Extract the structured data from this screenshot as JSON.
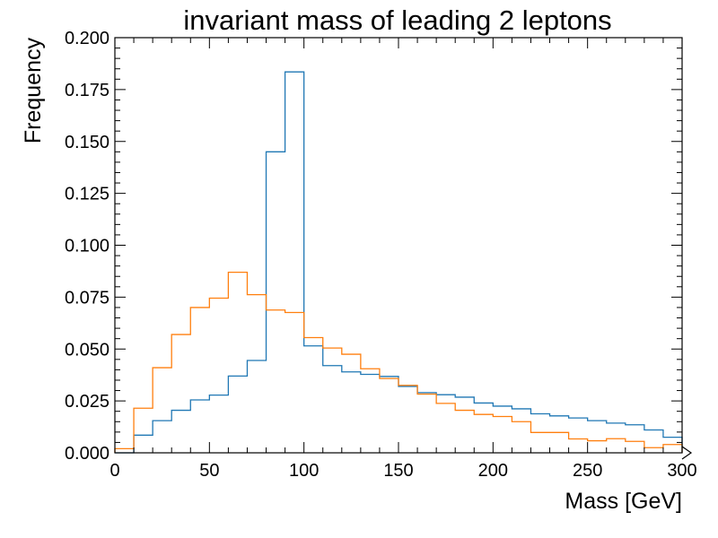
{
  "chart_data": {
    "type": "histogram",
    "title": "invariant mass of leading 2 leptons",
    "xlabel": "Mass [GeV]",
    "ylabel": "Frequency",
    "xlim": [
      0,
      300
    ],
    "ylim": [
      0,
      0.2
    ],
    "bin_edges": [
      0,
      10,
      20,
      30,
      40,
      50,
      60,
      70,
      80,
      90,
      100,
      110,
      120,
      130,
      140,
      150,
      160,
      170,
      180,
      190,
      200,
      210,
      220,
      230,
      240,
      250,
      260,
      270,
      280,
      290,
      300
    ],
    "x_ticks": [
      0,
      50,
      100,
      150,
      200,
      250,
      300
    ],
    "x_tick_labels": [
      "0",
      "50",
      "100",
      "150",
      "200",
      "250",
      "300"
    ],
    "y_ticks": [
      0,
      0.025,
      0.05,
      0.075,
      0.1,
      0.125,
      0.15,
      0.175,
      0.2
    ],
    "y_tick_labels": [
      "0.000",
      "0.025",
      "0.050",
      "0.075",
      "0.100",
      "0.125",
      "0.150",
      "0.175",
      "0.200"
    ],
    "grid": false,
    "series": [
      {
        "color": "#1f77b4",
        "values": [
          0.0,
          0.0085,
          0.0155,
          0.0205,
          0.0255,
          0.0278,
          0.037,
          0.0445,
          0.145,
          0.1835,
          0.0515,
          0.042,
          0.039,
          0.0378,
          0.0368,
          0.032,
          0.029,
          0.028,
          0.0268,
          0.024,
          0.0225,
          0.0212,
          0.0188,
          0.0178,
          0.0168,
          0.0155,
          0.0143,
          0.0135,
          0.011,
          0.0075
        ]
      },
      {
        "color": "#ff7f0e",
        "values": [
          0.002,
          0.0215,
          0.041,
          0.057,
          0.07,
          0.0745,
          0.087,
          0.0762,
          0.0688,
          0.0676,
          0.0555,
          0.0505,
          0.0475,
          0.0405,
          0.0358,
          0.0325,
          0.0283,
          0.0238,
          0.0205,
          0.0185,
          0.0175,
          0.015,
          0.0098,
          0.0098,
          0.0067,
          0.0058,
          0.0068,
          0.0055,
          0.0025,
          0.004
        ]
      }
    ]
  }
}
